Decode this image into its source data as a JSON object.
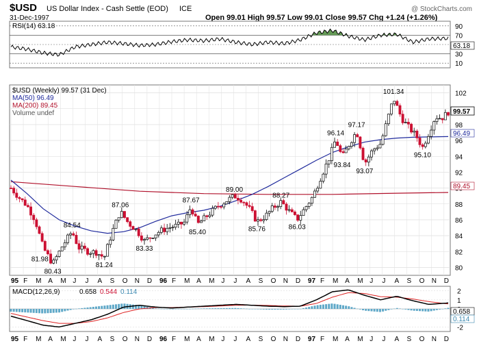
{
  "header": {
    "symbol": "$USD",
    "name": "US Dollar Index - Cash Settle (EOD)",
    "exchange": "ICE",
    "date": "31-Dec-1997",
    "watermark": "@ StockCharts.com",
    "ohlc": "Open 99.01  High 99.57  Low 99.01  Close 99.57  Chg +1.24 (+1.26%)"
  },
  "rsi_panel": {
    "label": "RSI(14) 63.18",
    "last_value": "63.18",
    "ticks": [
      "90",
      "70",
      "50",
      "30",
      "10"
    ]
  },
  "price_panel": {
    "legend": [
      {
        "text": "$USD (Weekly) 99.57 (31 Dec)",
        "color": "#000000"
      },
      {
        "text": "MA(50) 96.49",
        "color": "#1f2a9c"
      },
      {
        "text": "MA(200) 89.45",
        "color": "#b0102a"
      },
      {
        "text": "Volume undef",
        "color": "#555555"
      }
    ],
    "last_price": "99.57",
    "ma50_last": "96.49",
    "ma200_last": "89.45",
    "ticks": [
      "102",
      "100",
      "98",
      "96",
      "94",
      "92",
      "90",
      "88",
      "86",
      "84",
      "82",
      "80"
    ],
    "annotations": [
      "80.43",
      "81.98",
      "84.54",
      "81.24",
      "87.06",
      "83.33",
      "87.67",
      "85.40",
      "89.00",
      "85.76",
      "88.27",
      "86.03",
      "96.14",
      "93.84",
      "97.17",
      "93.07",
      "101.34",
      "95.10"
    ]
  },
  "macd_panel": {
    "label": "MACD(12,26,9)",
    "macd_value": "0.658",
    "signal_value": "0.544",
    "hist_value": "0.114",
    "ticks": [
      "2",
      "1",
      "0",
      "-1",
      "-2"
    ]
  },
  "x_axis": {
    "labels": [
      "95",
      "F",
      "M",
      "A",
      "M",
      "J",
      "J",
      "A",
      "S",
      "O",
      "N",
      "D",
      "96",
      "F",
      "M",
      "A",
      "M",
      "J",
      "J",
      "A",
      "S",
      "O",
      "N",
      "D",
      "97",
      "F",
      "M",
      "A",
      "M",
      "J",
      "J",
      "A",
      "S",
      "O",
      "N",
      "D"
    ]
  },
  "colors": {
    "up": "#000000",
    "down": "#cc1133",
    "ma50": "#1f2a9c",
    "ma200": "#b0102a",
    "macd": "#000000",
    "signal": "#dd2222",
    "hist": "#5fa8c8",
    "rsi_fill": "#4a8a3a"
  },
  "chart_data": {
    "type": "candlestick",
    "title": "$USD US Dollar Index - Cash Settle (EOD)",
    "x_range": [
      "1995-01",
      "1997-12"
    ],
    "price_range": [
      79,
      103
    ],
    "price_path": [
      [
        0,
        90
      ],
      [
        0.5,
        88.8
      ],
      [
        1,
        87.8
      ],
      [
        1.5,
        86
      ],
      [
        2,
        82.5
      ],
      [
        2.6,
        80.43
      ],
      [
        3.2,
        82.7
      ],
      [
        3.8,
        84.54
      ],
      [
        4.2,
        82.5
      ],
      [
        4.8,
        82
      ],
      [
        5.3,
        81.9
      ],
      [
        5.8,
        81.24
      ],
      [
        6.3,
        84.5
      ],
      [
        6.8,
        87.06
      ],
      [
        7.3,
        85.6
      ],
      [
        7.8,
        84.7
      ],
      [
        8.3,
        83.33
      ],
      [
        8.8,
        84
      ],
      [
        9.3,
        84.6
      ],
      [
        9.8,
        85
      ],
      [
        10.4,
        85.3
      ],
      [
        10.8,
        85.7
      ],
      [
        11.2,
        87.67
      ],
      [
        11.6,
        85.4
      ],
      [
        12.2,
        86.5
      ],
      [
        12.8,
        87.6
      ],
      [
        13.4,
        88.4
      ],
      [
        13.9,
        89
      ],
      [
        14.4,
        88.5
      ],
      [
        14.9,
        87.2
      ],
      [
        15.3,
        85.76
      ],
      [
        15.8,
        86.4
      ],
      [
        16.3,
        87.5
      ],
      [
        16.8,
        88.27
      ],
      [
        17.3,
        87.1
      ],
      [
        17.8,
        86.03
      ],
      [
        18.3,
        87.5
      ],
      [
        18.8,
        89
      ],
      [
        19.3,
        91.5
      ],
      [
        19.8,
        93.8
      ],
      [
        20.2,
        96.14
      ],
      [
        20.6,
        93.84
      ],
      [
        21,
        95.4
      ],
      [
        21.5,
        97.17
      ],
      [
        22,
        93.07
      ],
      [
        22.5,
        94.8
      ],
      [
        23,
        95.6
      ],
      [
        23.4,
        98.5
      ],
      [
        23.8,
        101.34
      ],
      [
        24.3,
        98.8
      ],
      [
        24.8,
        97.5
      ],
      [
        25.2,
        96.6
      ],
      [
        25.6,
        95.1
      ],
      [
        26,
        97
      ],
      [
        26.4,
        99
      ],
      [
        26.8,
        98.8
      ],
      [
        27.2,
        99.57
      ]
    ],
    "ma50_path": [
      [
        0,
        91
      ],
      [
        1,
        89.3
      ],
      [
        2,
        87.4
      ],
      [
        3,
        86
      ],
      [
        4,
        85.2
      ],
      [
        5,
        84.6
      ],
      [
        6,
        84.3
      ],
      [
        7,
        84.5
      ],
      [
        8,
        85
      ],
      [
        9,
        85.8
      ],
      [
        10,
        86.5
      ],
      [
        11,
        86.9
      ],
      [
        12,
        87.2
      ],
      [
        13,
        87.7
      ],
      [
        14,
        88.4
      ],
      [
        15,
        89.2
      ],
      [
        16,
        90.2
      ],
      [
        17,
        91.3
      ],
      [
        18,
        92.4
      ],
      [
        19,
        93.5
      ],
      [
        20,
        94.5
      ],
      [
        21,
        95.2
      ],
      [
        22,
        95.8
      ],
      [
        23,
        96.1
      ],
      [
        24,
        96.3
      ],
      [
        25,
        96.4
      ],
      [
        26,
        96.45
      ],
      [
        27.2,
        96.49
      ]
    ],
    "ma200_path": [
      [
        0,
        90.8
      ],
      [
        4,
        90.2
      ],
      [
        8,
        89.6
      ],
      [
        12,
        89.3
      ],
      [
        16,
        89.2
      ],
      [
        20,
        89.2
      ],
      [
        24,
        89.35
      ],
      [
        27.2,
        89.45
      ]
    ],
    "rsi_path": [
      [
        0,
        45
      ],
      [
        1,
        40
      ],
      [
        2,
        32
      ],
      [
        3,
        28
      ],
      [
        4,
        45
      ],
      [
        5,
        50
      ],
      [
        6,
        55
      ],
      [
        7,
        52
      ],
      [
        8,
        48
      ],
      [
        9,
        50
      ],
      [
        10,
        56
      ],
      [
        11,
        60
      ],
      [
        12,
        58
      ],
      [
        13,
        62
      ],
      [
        14,
        55
      ],
      [
        15,
        50
      ],
      [
        16,
        55
      ],
      [
        17,
        52
      ],
      [
        18,
        60
      ],
      [
        19,
        75
      ],
      [
        20,
        80
      ],
      [
        21,
        68
      ],
      [
        22,
        60
      ],
      [
        23,
        70
      ],
      [
        24,
        72
      ],
      [
        25,
        55
      ],
      [
        26,
        62
      ],
      [
        27.2,
        63.18
      ]
    ],
    "rsi_range": [
      0,
      100
    ],
    "macd_path": [
      [
        0,
        -0.8
      ],
      [
        1,
        -1.3
      ],
      [
        2,
        -1.8
      ],
      [
        3,
        -2.0
      ],
      [
        4,
        -1.6
      ],
      [
        5,
        -1.2
      ],
      [
        6,
        -0.6
      ],
      [
        7,
        0.2
      ],
      [
        8,
        0.4
      ],
      [
        9,
        0.2
      ],
      [
        10,
        0.1
      ],
      [
        11,
        0.2
      ],
      [
        12,
        0.3
      ],
      [
        13,
        0.4
      ],
      [
        14,
        0.5
      ],
      [
        15,
        0.4
      ],
      [
        16,
        0.3
      ],
      [
        17,
        0.25
      ],
      [
        18,
        0.3
      ],
      [
        19,
        1.0
      ],
      [
        20,
        1.9
      ],
      [
        21,
        2.1
      ],
      [
        22,
        1.5
      ],
      [
        23,
        1.0
      ],
      [
        24,
        1.4
      ],
      [
        25,
        0.9
      ],
      [
        26,
        0.5
      ],
      [
        27.2,
        0.658
      ]
    ],
    "signal_path": [
      [
        0,
        -0.5
      ],
      [
        1,
        -0.9
      ],
      [
        2,
        -1.3
      ],
      [
        3,
        -1.6
      ],
      [
        4,
        -1.6
      ],
      [
        5,
        -1.4
      ],
      [
        6,
        -1.0
      ],
      [
        7,
        -0.4
      ],
      [
        8,
        0.0
      ],
      [
        9,
        0.15
      ],
      [
        10,
        0.15
      ],
      [
        11,
        0.2
      ],
      [
        12,
        0.25
      ],
      [
        13,
        0.32
      ],
      [
        14,
        0.4
      ],
      [
        15,
        0.42
      ],
      [
        16,
        0.38
      ],
      [
        17,
        0.32
      ],
      [
        18,
        0.3
      ],
      [
        19,
        0.6
      ],
      [
        20,
        1.3
      ],
      [
        21,
        1.8
      ],
      [
        22,
        1.7
      ],
      [
        23,
        1.35
      ],
      [
        24,
        1.3
      ],
      [
        25,
        1.1
      ],
      [
        26,
        0.8
      ],
      [
        27.2,
        0.544
      ]
    ],
    "macd_range": [
      -2.5,
      2.5
    ],
    "x_max": 27.2
  }
}
